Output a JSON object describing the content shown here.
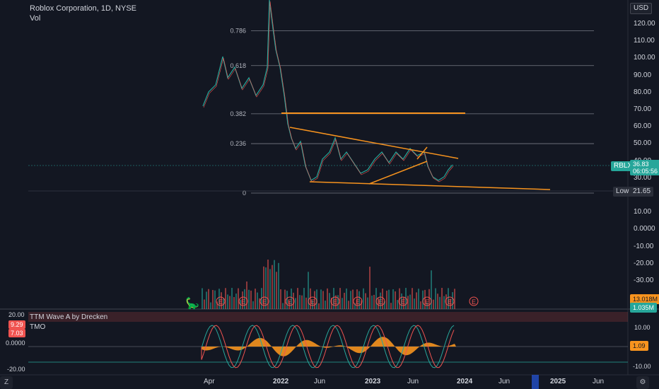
{
  "header": {
    "title": "Roblox Corporation, 1D, NYSE",
    "subtitle": "Vol"
  },
  "currency": "USD",
  "fib_levels": [
    {
      "label": "0.786",
      "price": 115.7
    },
    {
      "label": "0.618",
      "price": 95.5
    },
    {
      "label": "0.382",
      "price": 67.6
    },
    {
      "label": "0.236",
      "price": 50.3
    },
    {
      "label": "0",
      "price": 21.65
    }
  ],
  "price_axis": {
    "ticks": [
      "120.00",
      "110.00",
      "100.00",
      "90.00",
      "80.00",
      "70.00",
      "60.00",
      "50.00",
      "40.00",
      "30.00",
      "20.00",
      "10.00",
      "0.0000",
      "-10.00",
      "-20.00",
      "-30.00"
    ]
  },
  "last_price": {
    "symbol": "RBLX",
    "price": "36.83",
    "timer": "06:05:56",
    "value": 36.83
  },
  "low": {
    "label": "Low",
    "price": "21.65"
  },
  "volume_tags": {
    "volume": "13.018M",
    "volume_ma": "1.035M"
  },
  "x_axis_labels": [
    "Apr",
    "2022",
    "Jun",
    "2023",
    "Jun",
    "2024",
    "Jun",
    "2025",
    "Jun"
  ],
  "earnings_marker": "E",
  "indicator": {
    "title": "TTM Wave A by Drecken",
    "sub": "TMO",
    "left_ticks": [
      "20.00",
      "0.0000",
      "-20.00"
    ],
    "left_values": [
      "9.29",
      "7.03"
    ],
    "right_ticks": [
      "10.00",
      "0.00",
      "-10.00"
    ],
    "current": "1.09"
  },
  "corner": {
    "left": "Z",
    "right": "⚙"
  },
  "colors": {
    "bg": "#131722",
    "up": "#26a69a",
    "down": "#ef5350",
    "trend": "#f7931e",
    "grid": "#2a2e39"
  },
  "chart_data": {
    "type": "line",
    "title": "Roblox Corporation, 1D, NYSE",
    "x": [
      "Apr",
      "2022",
      "Jun",
      "2023",
      "Jun",
      "2024"
    ],
    "series": [
      {
        "name": "RBLX",
        "values": [
          75,
          125,
          30,
          25,
          45,
          36.83
        ]
      }
    ],
    "ylim": [
      -30,
      125
    ]
  }
}
